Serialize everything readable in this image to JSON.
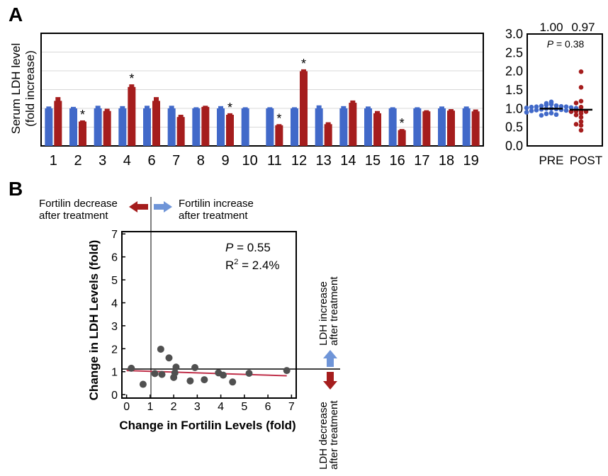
{
  "panel_a": {
    "label": "A",
    "ylabel_line1": "Serum LDH level",
    "ylabel_line2": "(fold increase)",
    "summary_pre_mean": "1.00",
    "summary_post_mean": "0.97",
    "summary_p_prefix": "P",
    "summary_p_rest": " = 0.38",
    "summary_ticks": [
      "3.0",
      "2.5",
      "2.0",
      "1.5",
      "1.0",
      "0.5",
      "0.0"
    ],
    "summary_xlabels": [
      "PRE",
      "POST"
    ]
  },
  "panel_b": {
    "label": "B",
    "left_arrow_line1": "Fortilin decrease",
    "left_arrow_line2": "after treatment",
    "right_arrow_line1": "Fortilin increase",
    "right_arrow_line2": "after treatment",
    "up_arrow_line1": "LDH increase",
    "up_arrow_line2": "after treatment",
    "down_arrow_line1": "LDH decrease",
    "down_arrow_line2": "after treatment",
    "p_prefix": "P",
    "p_rest": " = 0.55",
    "r2_prefix": "R",
    "r2_sup": "2",
    "r2_rest": " = 2.4%",
    "xlabel": "Change in Fortilin Levels (fold)",
    "ylabel": "Change in LDH Levels (fold)"
  },
  "colors": {
    "pre": "#4169c9",
    "post": "#a51d1d",
    "regression": "#c0304a",
    "scatter": "#505050"
  },
  "chart_data": [
    {
      "type": "bar",
      "title": "",
      "ylabel": "Serum LDH level (fold increase)",
      "categories": [
        "1",
        "2",
        "3",
        "4",
        "6",
        "7",
        "8",
        "9",
        "10",
        "11",
        "12",
        "13",
        "14",
        "15",
        "16",
        "17",
        "18",
        "19"
      ],
      "ylim": [
        0,
        3.0
      ],
      "ticks": [],
      "grid": true,
      "series": [
        {
          "values": [
            1.0,
            1.0,
            1.0,
            1.0,
            1.0,
            1.0,
            1.0,
            1.0,
            1.0,
            1.0,
            1.0,
            1.0,
            1.0,
            1.0,
            1.0,
            1.0,
            1.0,
            1.0
          ],
          "errors": [
            0.05,
            0.04,
            0.07,
            0.06,
            0.07,
            0.07,
            0.03,
            0.06,
            0.03,
            0.03,
            0.03,
            0.08,
            0.06,
            0.05,
            0.03,
            0.03,
            0.05,
            0.05
          ]
        },
        {
          "values": [
            1.2,
            0.65,
            0.93,
            1.57,
            1.2,
            0.77,
            1.04,
            0.83,
            0,
            0.55,
            1.99,
            0.58,
            1.15,
            0.87,
            0.42,
            0.92,
            0.94,
            0.92
          ],
          "errors": [
            0.1,
            0.03,
            0.06,
            0.07,
            0.1,
            0.06,
            0.03,
            0.04,
            0,
            0.03,
            0.05,
            0.05,
            0.06,
            0.06,
            0.03,
            0.03,
            0.04,
            0.05
          ]
        }
      ],
      "significant": [
        "2",
        "4",
        "9",
        "11",
        "12",
        "16"
      ]
    },
    {
      "type": "scatter",
      "title": "",
      "categories": [
        "PRE",
        "POST"
      ],
      "ylim": [
        0,
        3.0
      ],
      "ticks": [
        0,
        0.5,
        1.0,
        1.5,
        2.0,
        2.5,
        3.0
      ],
      "series": [
        {
          "name": "PRE",
          "mean": 1.0,
          "values": [
            1.18,
            1.14,
            1.12,
            1.1,
            1.08,
            1.07,
            1.06,
            1.05,
            1.05,
            1.04,
            1.03,
            1.02,
            1.01,
            1.0,
            1.0,
            0.99,
            0.98,
            0.97,
            0.96,
            0.95,
            0.94,
            0.92,
            0.9,
            0.88,
            0.86,
            0.84,
            0.82
          ]
        },
        {
          "name": "POST",
          "mean": 0.97,
          "values": [
            1.99,
            1.57,
            1.2,
            1.15,
            1.04,
            0.94,
            0.93,
            0.92,
            0.92,
            0.87,
            0.83,
            0.77,
            0.65,
            0.58,
            0.55,
            0.42
          ]
        }
      ]
    },
    {
      "type": "scatter",
      "title": "",
      "xlabel": "Change in Fortilin Levels (fold)",
      "ylabel": "Change in LDH Levels (fold)",
      "xlim": [
        -0.2,
        7.2
      ],
      "ylim": [
        -0.15,
        7.1
      ],
      "xticks": [
        0,
        1,
        2,
        3,
        4,
        5,
        6,
        7
      ],
      "yticks": [
        0,
        1,
        2,
        3,
        4,
        5,
        6,
        7
      ],
      "points": [
        [
          0.2,
          1.15
        ],
        [
          0.7,
          0.45
        ],
        [
          1.2,
          0.92
        ],
        [
          1.45,
          1.98
        ],
        [
          1.5,
          0.88
        ],
        [
          1.8,
          1.6
        ],
        [
          2.0,
          0.75
        ],
        [
          2.05,
          0.95
        ],
        [
          2.1,
          1.2
        ],
        [
          2.7,
          0.6
        ],
        [
          2.9,
          1.18
        ],
        [
          3.3,
          0.65
        ],
        [
          3.9,
          0.95
        ],
        [
          4.1,
          0.85
        ],
        [
          4.5,
          0.55
        ],
        [
          5.2,
          0.93
        ],
        [
          6.8,
          1.05
        ]
      ],
      "regression": {
        "x": [
          0.0,
          6.8
        ],
        "y": [
          1.05,
          0.82
        ]
      },
      "reference_lines": {
        "x": 1,
        "y": 1
      }
    }
  ]
}
